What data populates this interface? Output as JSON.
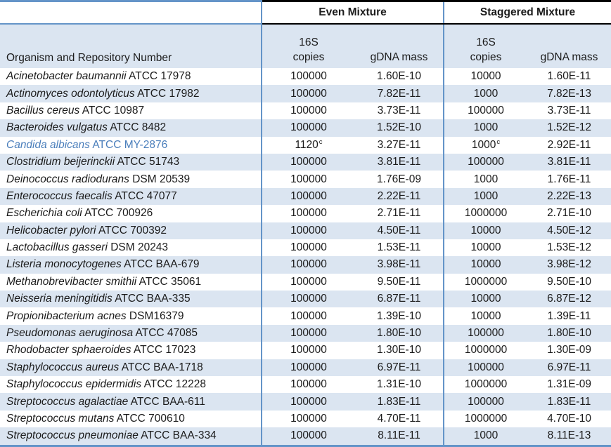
{
  "colors": {
    "border_blue": "#6494c8",
    "stripe_blue": "#dbe5f1",
    "header_border_black": "#000000",
    "highlight_text_blue": "#4a7ebb"
  },
  "table": {
    "groups": [
      "Even Mixture",
      "Staggered Mixture"
    ],
    "organism_header": "Organism and Repository Number",
    "sub_headers": {
      "copies_line1": "16S",
      "copies_line2": "copies",
      "mass": "gDNA mass"
    },
    "footnote_marker": "c",
    "rows": [
      {
        "organism": "Acinetobacter baumannii",
        "repository": "ATCC 17978",
        "even_copies": "100000",
        "even_copies_sup": "",
        "even_mass": "1.60E-10",
        "stag_copies": "10000",
        "stag_copies_sup": "",
        "stag_mass": "1.60E-11",
        "highlight": false
      },
      {
        "organism": "Actinomyces odontolyticus",
        "repository": "ATCC 17982",
        "even_copies": "100000",
        "even_copies_sup": "",
        "even_mass": "7.82E-11",
        "stag_copies": "1000",
        "stag_copies_sup": "",
        "stag_mass": "7.82E-13",
        "highlight": false
      },
      {
        "organism": "Bacillus cereus",
        "repository": "ATCC 10987",
        "even_copies": "100000",
        "even_copies_sup": "",
        "even_mass": "3.73E-11",
        "stag_copies": "100000",
        "stag_copies_sup": "",
        "stag_mass": "3.73E-11",
        "highlight": false
      },
      {
        "organism": "Bacteroides vulgatus",
        "repository": "ATCC 8482",
        "even_copies": "100000",
        "even_copies_sup": "",
        "even_mass": "1.52E-10",
        "stag_copies": "1000",
        "stag_copies_sup": "",
        "stag_mass": "1.52E-12",
        "highlight": false
      },
      {
        "organism": "Candida albicans",
        "repository": "ATCC MY-2876",
        "even_copies": "1120",
        "even_copies_sup": "c",
        "even_mass": "3.27E-11",
        "stag_copies": "1000",
        "stag_copies_sup": "c",
        "stag_mass": "2.92E-11",
        "highlight": true
      },
      {
        "organism": "Clostridium beijerinckii",
        "repository": "ATCC 51743",
        "even_copies": "100000",
        "even_copies_sup": "",
        "even_mass": "3.81E-11",
        "stag_copies": "100000",
        "stag_copies_sup": "",
        "stag_mass": "3.81E-11",
        "highlight": false
      },
      {
        "organism": "Deinococcus radiodurans",
        "repository": "DSM 20539",
        "even_copies": "100000",
        "even_copies_sup": "",
        "even_mass": "1.76E-09",
        "stag_copies": "1000",
        "stag_copies_sup": "",
        "stag_mass": "1.76E-11",
        "highlight": false
      },
      {
        "organism": "Enterococcus faecalis",
        "repository": "ATCC 47077",
        "even_copies": "100000",
        "even_copies_sup": "",
        "even_mass": "2.22E-11",
        "stag_copies": "1000",
        "stag_copies_sup": "",
        "stag_mass": "2.22E-13",
        "highlight": false
      },
      {
        "organism": "Escherichia coli",
        "repository": "ATCC 700926",
        "even_copies": "100000",
        "even_copies_sup": "",
        "even_mass": "2.71E-11",
        "stag_copies": "1000000",
        "stag_copies_sup": "",
        "stag_mass": "2.71E-10",
        "highlight": false
      },
      {
        "organism": "Helicobacter pylori",
        "repository": "ATCC 700392",
        "even_copies": "100000",
        "even_copies_sup": "",
        "even_mass": "4.50E-11",
        "stag_copies": "10000",
        "stag_copies_sup": "",
        "stag_mass": "4.50E-12",
        "highlight": false
      },
      {
        "organism": "Lactobacillus gasseri",
        "repository": "DSM 20243",
        "even_copies": "100000",
        "even_copies_sup": "",
        "even_mass": "1.53E-11",
        "stag_copies": "10000",
        "stag_copies_sup": "",
        "stag_mass": "1.53E-12",
        "highlight": false
      },
      {
        "organism": "Listeria monocytogenes",
        "repository": "ATCC BAA-679",
        "even_copies": "100000",
        "even_copies_sup": "",
        "even_mass": "3.98E-11",
        "stag_copies": "10000",
        "stag_copies_sup": "",
        "stag_mass": "3.98E-12",
        "highlight": false
      },
      {
        "organism": "Methanobrevibacter smithii",
        "repository": "ATCC 35061",
        "even_copies": "100000",
        "even_copies_sup": "",
        "even_mass": "9.50E-11",
        "stag_copies": "1000000",
        "stag_copies_sup": "",
        "stag_mass": "9.50E-10",
        "highlight": false
      },
      {
        "organism": "Neisseria meningitidis",
        "repository": "ATCC BAA-335",
        "even_copies": "100000",
        "even_copies_sup": "",
        "even_mass": "6.87E-11",
        "stag_copies": "10000",
        "stag_copies_sup": "",
        "stag_mass": "6.87E-12",
        "highlight": false
      },
      {
        "organism": "Propionibacterium acnes",
        "repository": "DSM16379",
        "even_copies": "100000",
        "even_copies_sup": "",
        "even_mass": "1.39E-10",
        "stag_copies": "10000",
        "stag_copies_sup": "",
        "stag_mass": "1.39E-11",
        "highlight": false
      },
      {
        "organism": "Pseudomonas aeruginosa",
        "repository": "ATCC 47085",
        "even_copies": "100000",
        "even_copies_sup": "",
        "even_mass": "1.80E-10",
        "stag_copies": "100000",
        "stag_copies_sup": "",
        "stag_mass": "1.80E-10",
        "highlight": false
      },
      {
        "organism": "Rhodobacter sphaeroides",
        "repository": "ATCC 17023",
        "even_copies": "100000",
        "even_copies_sup": "",
        "even_mass": "1.30E-10",
        "stag_copies": "1000000",
        "stag_copies_sup": "",
        "stag_mass": "1.30E-09",
        "highlight": false
      },
      {
        "organism": "Staphylococcus aureus",
        "repository": "ATCC BAA-1718",
        "even_copies": "100000",
        "even_copies_sup": "",
        "even_mass": "6.97E-11",
        "stag_copies": "100000",
        "stag_copies_sup": "",
        "stag_mass": "6.97E-11",
        "highlight": false
      },
      {
        "organism": "Staphylococcus epidermidis",
        "repository": "ATCC 12228",
        "even_copies": "100000",
        "even_copies_sup": "",
        "even_mass": "1.31E-10",
        "stag_copies": "1000000",
        "stag_copies_sup": "",
        "stag_mass": "1.31E-09",
        "highlight": false
      },
      {
        "organism": "Streptococcus agalactiae",
        "repository": "ATCC BAA-611",
        "even_copies": "100000",
        "even_copies_sup": "",
        "even_mass": "1.83E-11",
        "stag_copies": "100000",
        "stag_copies_sup": "",
        "stag_mass": "1.83E-11",
        "highlight": false
      },
      {
        "organism": "Streptococcus mutans",
        "repository": "ATCC 700610",
        "even_copies": "100000",
        "even_copies_sup": "",
        "even_mass": "4.70E-11",
        "stag_copies": "1000000",
        "stag_copies_sup": "",
        "stag_mass": "4.70E-10",
        "highlight": false
      },
      {
        "organism": "Streptococcus pneumoniae",
        "repository": "ATCC BAA-334",
        "even_copies": "100000",
        "even_copies_sup": "",
        "even_mass": "8.11E-11",
        "stag_copies": "1000",
        "stag_copies_sup": "",
        "stag_mass": "8.11E-13",
        "highlight": false
      }
    ]
  }
}
